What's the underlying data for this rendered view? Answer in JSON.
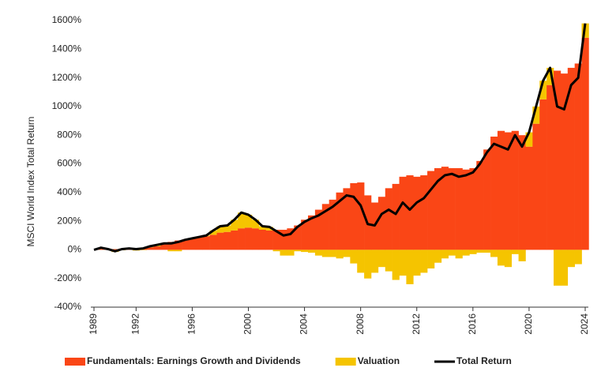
{
  "chart_data": {
    "type": "bar",
    "y_label": "MSCI World Index Total Return",
    "x": [
      1989,
      1989.5,
      1990,
      1990.5,
      1991,
      1991.5,
      1992,
      1992.5,
      1993,
      1993.5,
      1994,
      1994.5,
      1995,
      1995.5,
      1996,
      1996.5,
      1997,
      1997.5,
      1998,
      1998.5,
      1999,
      1999.5,
      2000,
      2000.5,
      2001,
      2001.5,
      2002,
      2002.5,
      2003,
      2003.5,
      2004,
      2004.5,
      2005,
      2005.5,
      2006,
      2006.5,
      2007,
      2007.5,
      2008,
      2008.5,
      2009,
      2009.5,
      2010,
      2010.5,
      2011,
      2011.5,
      2012,
      2012.5,
      2013,
      2013.5,
      2014,
      2014.5,
      2015,
      2015.5,
      2016,
      2016.5,
      2017,
      2017.5,
      2018,
      2018.5,
      2019,
      2019.5,
      2020,
      2020.5,
      2021,
      2021.5,
      2022,
      2022.5,
      2023,
      2023.5,
      2024
    ],
    "series": [
      {
        "name": "Fundamentals: Earnings Growth and Dividends",
        "type": "bar",
        "color": "#fa4616",
        "values": [
          0,
          5,
          5,
          5,
          8,
          10,
          10,
          12,
          18,
          25,
          40,
          55,
          65,
          70,
          80,
          85,
          95,
          105,
          120,
          125,
          135,
          150,
          155,
          150,
          140,
          135,
          140,
          140,
          150,
          170,
          210,
          240,
          280,
          320,
          350,
          400,
          430,
          465,
          470,
          380,
          330,
          370,
          430,
          460,
          510,
          520,
          510,
          520,
          550,
          570,
          580,
          570,
          570,
          560,
          570,
          620,
          700,
          790,
          830,
          820,
          830,
          800,
          720,
          880,
          1050,
          1150,
          1250,
          1230,
          1270,
          1300,
          1480
        ]
      },
      {
        "name": "Valuation",
        "type": "bar",
        "color": "#f5c400",
        "values": [
          0,
          10,
          0,
          -15,
          -3,
          0,
          -5,
          -2,
          7,
          10,
          5,
          -10,
          -10,
          0,
          0,
          5,
          5,
          30,
          45,
          45,
          75,
          110,
          90,
          60,
          25,
          25,
          -10,
          -40,
          -40,
          -10,
          -15,
          -20,
          -40,
          -50,
          -50,
          -60,
          -50,
          -95,
          -160,
          -200,
          -160,
          -120,
          -150,
          -210,
          -180,
          -240,
          -180,
          -160,
          -130,
          -90,
          -60,
          -40,
          -60,
          -40,
          -30,
          -20,
          -20,
          -50,
          -110,
          -120,
          -30,
          -80,
          100,
          120,
          130,
          120,
          -250,
          -250,
          -120,
          -100,
          100
        ]
      },
      {
        "name": "Total Return",
        "type": "line",
        "color": "#000000",
        "values": [
          0,
          15,
          5,
          -10,
          5,
          10,
          5,
          10,
          25,
          35,
          45,
          45,
          55,
          70,
          80,
          90,
          100,
          135,
          165,
          170,
          210,
          260,
          245,
          210,
          165,
          160,
          130,
          100,
          110,
          160,
          195,
          220,
          240,
          270,
          300,
          340,
          380,
          370,
          310,
          180,
          170,
          250,
          280,
          250,
          330,
          280,
          330,
          360,
          420,
          480,
          520,
          530,
          510,
          520,
          540,
          600,
          680,
          740,
          720,
          700,
          800,
          720,
          820,
          1000,
          1180,
          1270,
          1000,
          980,
          1150,
          1200,
          1580
        ]
      }
    ],
    "xlim": [
      1989,
      2024
    ],
    "xticks": [
      1989,
      1992,
      1996,
      2000,
      2004,
      2008,
      2012,
      2016,
      2020,
      2024
    ],
    "ylim": [
      -400,
      1600
    ],
    "yticks": [
      {
        "value": -400,
        "label": "-400%"
      },
      {
        "value": -200,
        "label": "-200%"
      },
      {
        "value": 0,
        "label": "0%"
      },
      {
        "value": 200,
        "label": "200%"
      },
      {
        "value": 400,
        "label": "400%"
      },
      {
        "value": 600,
        "label": "600%"
      },
      {
        "value": 800,
        "label": "800%"
      },
      {
        "value": 1000,
        "label": "1000%"
      },
      {
        "value": 1200,
        "label": "1200%"
      },
      {
        "value": 1400,
        "label": "1400%"
      },
      {
        "value": 1600,
        "label": "1600%"
      }
    ],
    "grid": false,
    "legend": "bottom"
  }
}
